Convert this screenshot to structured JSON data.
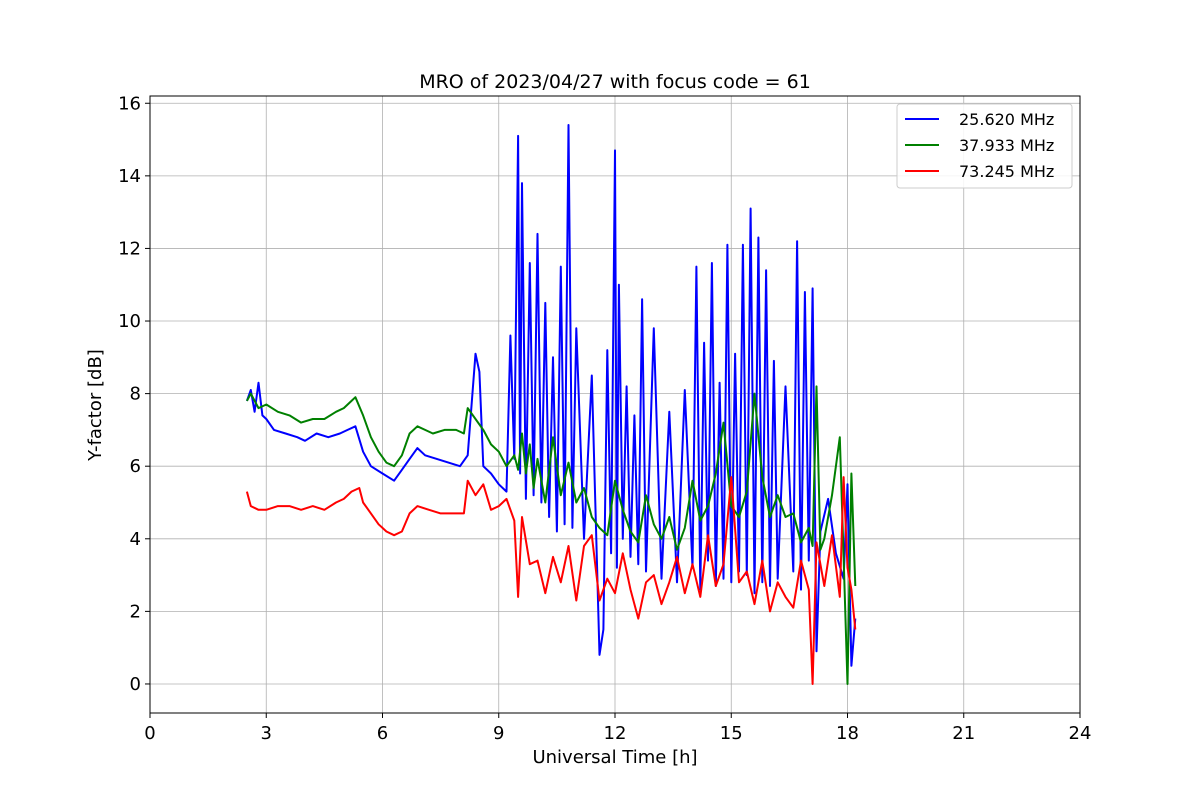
{
  "chart_data": {
    "type": "line",
    "title": "MRO of 2023/04/27 with focus code = 61",
    "xlabel": "Universal Time [h]",
    "ylabel": "Y-factor [dB]",
    "xlim": [
      0,
      24
    ],
    "ylim": [
      -0.8,
      16.2
    ],
    "xticks": [
      0,
      3,
      6,
      9,
      12,
      15,
      18,
      21,
      24
    ],
    "yticks": [
      0,
      2,
      4,
      6,
      8,
      10,
      12,
      14,
      16
    ],
    "grid": true,
    "legend": {
      "placement": "top-right"
    },
    "series": [
      {
        "name": "25.620 MHz",
        "color": "#0000ff",
        "x": [
          2.5,
          2.6,
          2.7,
          2.8,
          2.9,
          3.0,
          3.2,
          3.5,
          3.8,
          4.0,
          4.3,
          4.6,
          4.9,
          5.1,
          5.3,
          5.5,
          5.7,
          6.0,
          6.3,
          6.5,
          6.7,
          6.9,
          7.1,
          7.4,
          7.7,
          8.0,
          8.2,
          8.4,
          8.5,
          8.6,
          8.8,
          9.0,
          9.2,
          9.3,
          9.4,
          9.5,
          9.55,
          9.6,
          9.7,
          9.8,
          9.9,
          10.0,
          10.1,
          10.2,
          10.3,
          10.4,
          10.5,
          10.6,
          10.7,
          10.8,
          10.9,
          11.0,
          11.2,
          11.4,
          11.6,
          11.7,
          11.8,
          11.9,
          12.0,
          12.05,
          12.1,
          12.2,
          12.3,
          12.4,
          12.5,
          12.6,
          12.7,
          12.8,
          13.0,
          13.2,
          13.4,
          13.6,
          13.8,
          14.0,
          14.1,
          14.2,
          14.3,
          14.4,
          14.5,
          14.6,
          14.7,
          14.8,
          14.9,
          15.0,
          15.1,
          15.2,
          15.3,
          15.4,
          15.5,
          15.6,
          15.7,
          15.8,
          15.9,
          16.0,
          16.1,
          16.2,
          16.4,
          16.6,
          16.7,
          16.8,
          16.9,
          17.0,
          17.1,
          17.2,
          17.3,
          17.5,
          17.7,
          17.9,
          18.0,
          18.1,
          18.2
        ],
        "y": [
          7.8,
          8.1,
          7.5,
          8.3,
          7.4,
          7.3,
          7.0,
          6.9,
          6.8,
          6.7,
          6.9,
          6.8,
          6.9,
          7.0,
          7.1,
          6.4,
          6.0,
          5.8,
          5.6,
          5.9,
          6.2,
          6.5,
          6.3,
          6.2,
          6.1,
          6.0,
          6.3,
          9.1,
          8.6,
          6.0,
          5.8,
          5.5,
          5.3,
          9.6,
          6.2,
          15.1,
          5.8,
          13.8,
          5.1,
          11.6,
          5.2,
          12.4,
          5.0,
          10.5,
          4.6,
          9.0,
          4.2,
          11.5,
          4.4,
          15.4,
          4.3,
          9.8,
          4.0,
          8.5,
          0.8,
          1.5,
          9.2,
          3.6,
          14.7,
          3.2,
          11.0,
          4.0,
          8.2,
          3.5,
          7.4,
          3.3,
          10.6,
          3.1,
          9.8,
          2.9,
          7.5,
          2.8,
          8.1,
          3.2,
          11.5,
          2.6,
          9.4,
          3.4,
          11.6,
          2.7,
          8.3,
          2.9,
          12.1,
          2.8,
          9.1,
          3.1,
          12.1,
          3.0,
          13.1,
          2.5,
          12.3,
          2.8,
          11.4,
          2.7,
          8.9,
          2.9,
          8.2,
          3.1,
          12.2,
          2.6,
          10.8,
          3.4,
          10.9,
          0.9,
          4.2,
          5.1,
          3.6,
          2.9,
          5.5,
          0.5,
          1.8
        ]
      },
      {
        "name": "37.933 MHz",
        "color": "#008000",
        "x": [
          2.5,
          2.6,
          2.8,
          3.0,
          3.3,
          3.6,
          3.9,
          4.2,
          4.5,
          4.8,
          5.0,
          5.2,
          5.3,
          5.5,
          5.7,
          5.9,
          6.1,
          6.3,
          6.5,
          6.7,
          6.9,
          7.1,
          7.3,
          7.6,
          7.9,
          8.1,
          8.2,
          8.4,
          8.6,
          8.8,
          9.0,
          9.2,
          9.4,
          9.5,
          9.6,
          9.7,
          9.8,
          9.9,
          10.0,
          10.2,
          10.4,
          10.6,
          10.8,
          11.0,
          11.2,
          11.4,
          11.6,
          11.8,
          12.0,
          12.2,
          12.4,
          12.6,
          12.8,
          13.0,
          13.2,
          13.4,
          13.6,
          13.8,
          14.0,
          14.2,
          14.4,
          14.6,
          14.8,
          15.0,
          15.2,
          15.4,
          15.6,
          15.8,
          16.0,
          16.2,
          16.4,
          16.6,
          16.8,
          17.0,
          17.1,
          17.2,
          17.3,
          17.4,
          17.6,
          17.8,
          17.9,
          18.0,
          18.1,
          18.2
        ],
        "y": [
          7.8,
          8.0,
          7.6,
          7.7,
          7.5,
          7.4,
          7.2,
          7.3,
          7.3,
          7.5,
          7.6,
          7.8,
          7.9,
          7.4,
          6.8,
          6.4,
          6.1,
          6.0,
          6.3,
          6.9,
          7.1,
          7.0,
          6.9,
          7.0,
          7.0,
          6.9,
          7.6,
          7.3,
          7.0,
          6.6,
          6.4,
          6.0,
          6.3,
          5.9,
          6.9,
          5.8,
          6.6,
          5.4,
          6.2,
          5.0,
          6.8,
          5.2,
          6.1,
          5.0,
          5.4,
          4.6,
          4.3,
          4.1,
          5.6,
          4.8,
          4.2,
          3.9,
          5.2,
          4.4,
          4.0,
          4.6,
          3.7,
          4.3,
          5.6,
          4.5,
          4.9,
          5.8,
          7.2,
          4.9,
          4.6,
          5.3,
          8.0,
          5.7,
          4.6,
          5.2,
          4.6,
          4.7,
          3.9,
          4.3,
          3.8,
          8.2,
          3.7,
          4.0,
          5.2,
          6.8,
          3.5,
          0.0,
          5.8,
          2.7
        ]
      },
      {
        "name": "73.245 MHz",
        "color": "#ff0000",
        "x": [
          2.5,
          2.6,
          2.8,
          3.0,
          3.3,
          3.6,
          3.9,
          4.2,
          4.5,
          4.8,
          5.0,
          5.2,
          5.4,
          5.5,
          5.7,
          5.9,
          6.1,
          6.3,
          6.5,
          6.7,
          6.9,
          7.2,
          7.5,
          7.8,
          8.1,
          8.2,
          8.4,
          8.6,
          8.8,
          9.0,
          9.2,
          9.4,
          9.5,
          9.6,
          9.8,
          10.0,
          10.2,
          10.4,
          10.6,
          10.8,
          11.0,
          11.2,
          11.4,
          11.6,
          11.8,
          12.0,
          12.2,
          12.4,
          12.6,
          12.8,
          13.0,
          13.2,
          13.4,
          13.6,
          13.8,
          14.0,
          14.2,
          14.4,
          14.6,
          14.8,
          15.0,
          15.2,
          15.4,
          15.6,
          15.8,
          16.0,
          16.2,
          16.4,
          16.6,
          16.8,
          17.0,
          17.1,
          17.2,
          17.4,
          17.6,
          17.8,
          17.9,
          18.0,
          18.1,
          18.2
        ],
        "y": [
          5.3,
          4.9,
          4.8,
          4.8,
          4.9,
          4.9,
          4.8,
          4.9,
          4.8,
          5.0,
          5.1,
          5.3,
          5.4,
          5.0,
          4.7,
          4.4,
          4.2,
          4.1,
          4.2,
          4.7,
          4.9,
          4.8,
          4.7,
          4.7,
          4.7,
          5.6,
          5.2,
          5.5,
          4.8,
          4.9,
          5.1,
          4.5,
          2.4,
          4.6,
          3.3,
          3.4,
          2.5,
          3.5,
          2.8,
          3.8,
          2.3,
          3.8,
          4.1,
          2.3,
          2.9,
          2.5,
          3.6,
          2.6,
          1.8,
          2.8,
          3.0,
          2.2,
          2.8,
          3.5,
          2.5,
          3.3,
          2.4,
          4.1,
          2.7,
          3.3,
          5.7,
          2.8,
          3.1,
          2.2,
          3.4,
          2.0,
          2.8,
          2.4,
          2.1,
          3.4,
          2.6,
          0.0,
          3.9,
          2.7,
          4.1,
          2.4,
          5.7,
          3.2,
          2.6,
          1.5
        ]
      }
    ]
  }
}
